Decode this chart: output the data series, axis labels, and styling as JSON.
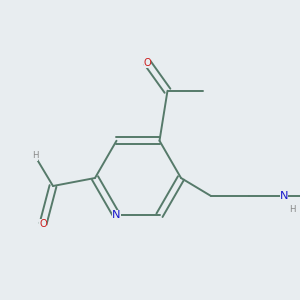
{
  "bg_color": "#e8edf0",
  "bond_color": "#567a6a",
  "atom_colors": {
    "N": "#1a1acc",
    "O": "#cc1a1a",
    "H": "#888888"
  },
  "lw": 1.4,
  "fs": 7.2
}
